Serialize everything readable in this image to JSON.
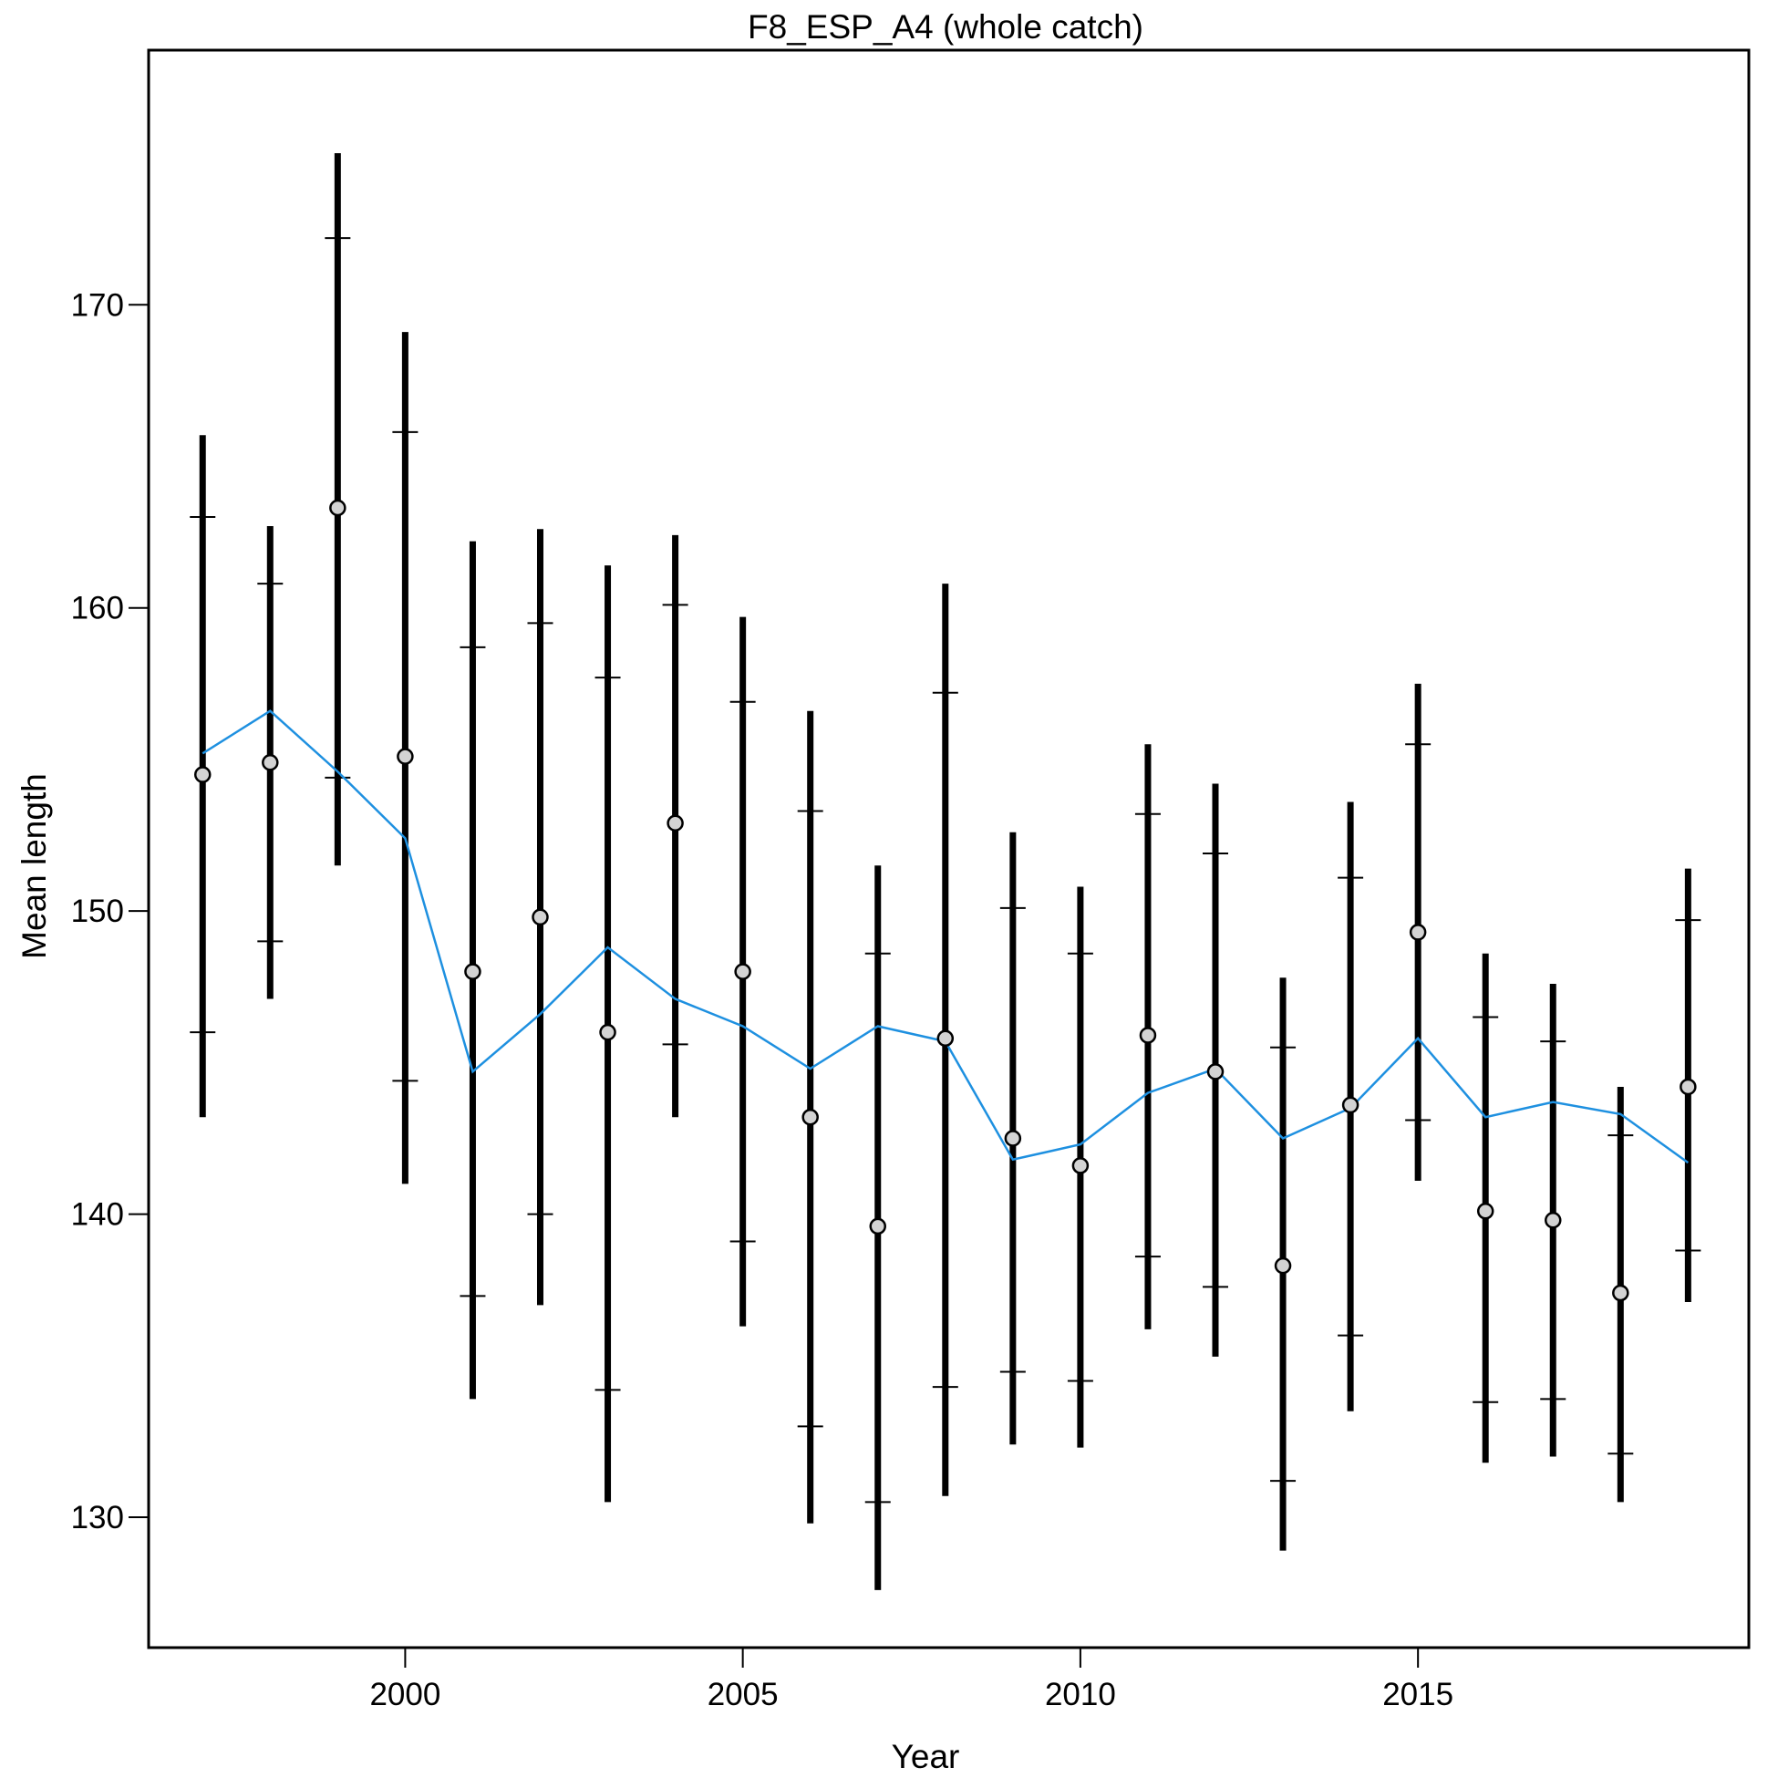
{
  "chart_data": {
    "type": "scatter",
    "title": "F8_ESP_A4 (whole catch)",
    "xlabel": "Year",
    "ylabel": "Mean length",
    "xlim": [
      1996.2,
      2019.9
    ],
    "ylim": [
      125.7,
      178.4
    ],
    "x_ticks": [
      2000,
      2005,
      2010,
      2015
    ],
    "y_ticks": [
      130,
      140,
      150,
      160,
      170
    ],
    "grid": false,
    "legend": "none",
    "colors": {
      "points": "#d3d3d3",
      "bars": "#000000",
      "expected_line": "#1e90e0"
    },
    "series": [
      {
        "type": "errorbar",
        "x": [
          1997,
          1998,
          1999,
          2000,
          2001,
          2002,
          2003,
          2004,
          2005,
          2006,
          2007,
          2008,
          2009,
          2010,
          2011,
          2012,
          2013,
          2014,
          2015,
          2016,
          2017,
          2018,
          2019
        ],
        "y": [
          154.5,
          154.9,
          163.3,
          155.1,
          148.0,
          149.8,
          146.0,
          152.9,
          148.0,
          143.2,
          139.6,
          145.8,
          142.5,
          141.6,
          145.9,
          144.7,
          138.3,
          143.6,
          149.3,
          140.1,
          139.8,
          137.4,
          144.2
        ],
        "inner_low": [
          146.0,
          149.0,
          154.4,
          144.4,
          137.3,
          140.0,
          134.2,
          145.6,
          139.1,
          133.0,
          130.5,
          134.3,
          134.8,
          134.5,
          138.6,
          137.6,
          131.2,
          136.0,
          143.1,
          133.8,
          133.9,
          132.1,
          138.8
        ],
        "inner_high": [
          163.0,
          160.8,
          172.2,
          165.8,
          158.7,
          159.5,
          157.7,
          160.1,
          156.9,
          153.3,
          148.6,
          157.2,
          150.1,
          148.6,
          153.2,
          151.9,
          145.5,
          151.1,
          155.5,
          146.5,
          145.7,
          142.6,
          149.7
        ],
        "outer_low": [
          143.2,
          147.1,
          151.5,
          141.0,
          133.9,
          137.0,
          130.5,
          143.2,
          136.3,
          129.8,
          127.6,
          130.7,
          132.4,
          132.3,
          136.2,
          135.3,
          128.9,
          133.5,
          141.1,
          131.8,
          132.0,
          130.5,
          137.1
        ],
        "outer_high": [
          165.7,
          162.7,
          175.0,
          169.1,
          162.2,
          162.6,
          161.4,
          162.4,
          159.7,
          156.6,
          151.5,
          160.8,
          152.6,
          150.8,
          155.5,
          154.2,
          147.8,
          153.6,
          157.5,
          148.6,
          147.6,
          144.2,
          151.4
        ]
      },
      {
        "type": "line",
        "x": [
          1997,
          1998,
          1999,
          2000,
          2001,
          2002,
          2003,
          2004,
          2005,
          2006,
          2007,
          2008,
          2009,
          2010,
          2011,
          2012,
          2013,
          2014,
          2015,
          2016,
          2017,
          2018,
          2019
        ],
        "y": [
          155.2,
          156.6,
          154.6,
          152.4,
          144.7,
          146.6,
          148.8,
          147.1,
          146.2,
          144.8,
          146.2,
          145.7,
          141.8,
          142.3,
          144.0,
          144.8,
          142.5,
          143.5,
          145.8,
          143.2,
          143.7,
          143.3,
          141.7
        ]
      }
    ]
  }
}
